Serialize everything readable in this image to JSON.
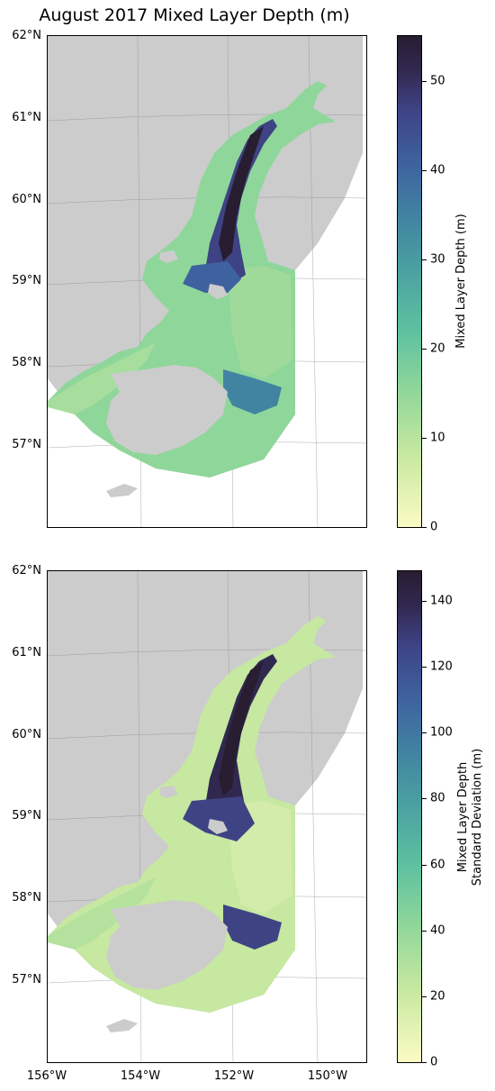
{
  "title": "August 2017 Mixed Layer Depth (m)",
  "lat_labels": [
    "62°N",
    "61°N",
    "60°N",
    "59°N",
    "58°N",
    "57°N"
  ],
  "lon_labels": [
    "156°W",
    "154°W",
    "152°W",
    "150°W"
  ],
  "top_panel": {
    "colorbar_label": "Mixed Layer Depth (m)",
    "colorbar_ticks": [
      "0",
      "10",
      "20",
      "30",
      "40",
      "50"
    ],
    "colorbar_range": [
      0,
      55
    ]
  },
  "bottom_panel": {
    "colorbar_label_line1": "Mixed Layer Depth",
    "colorbar_label_line2": "Standard Deviation (m)",
    "colorbar_ticks": [
      "0",
      "20",
      "40",
      "60",
      "80",
      "100",
      "120",
      "140"
    ],
    "colorbar_range": [
      0,
      149
    ]
  },
  "colors": {
    "land": "#cccccc",
    "colormap": [
      "#fbfbc3",
      "#8fd69a",
      "#4ba2a1",
      "#3e629f",
      "#281d31"
    ]
  }
}
